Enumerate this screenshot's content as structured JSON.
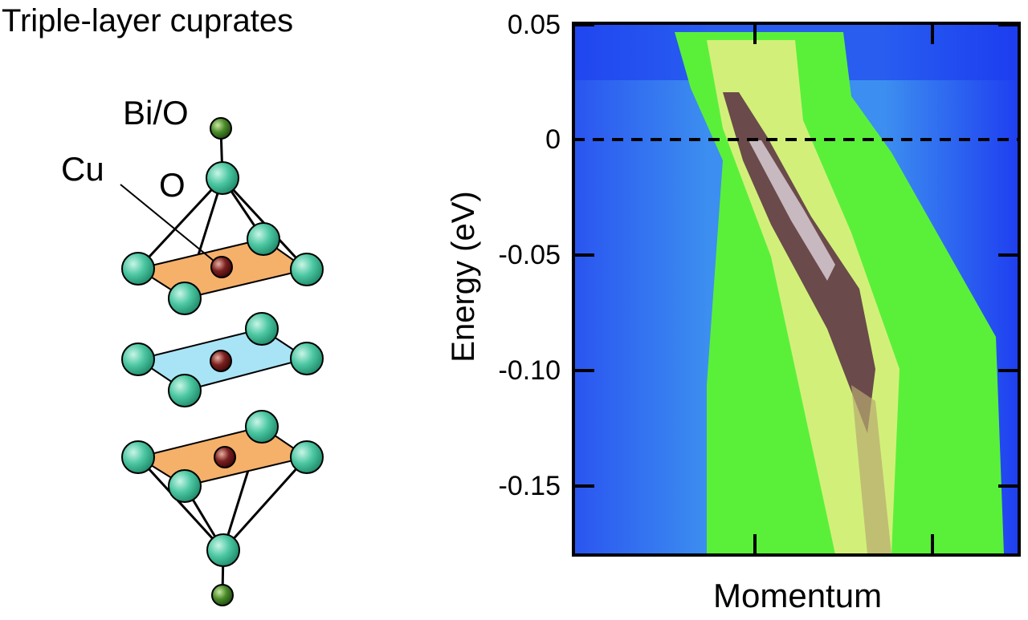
{
  "diagram": {
    "title": "Triple-layer cuprates",
    "labels": {
      "bio": "Bi/O",
      "cu": "Cu",
      "o": "O"
    },
    "colors": {
      "oxygen": "#3fbf9a",
      "copper": "#6b1d1d",
      "bio": "#4a7a2a",
      "outer_plane": "#f5b06a",
      "inner_plane": "#a8e4f5"
    }
  },
  "chart_data": {
    "type": "heatmap",
    "title": "",
    "xlabel": "Momentum",
    "ylabel": "Energy (eV)",
    "ylim": [
      -0.18,
      0.05
    ],
    "yticks": [
      0.05,
      0,
      -0.05,
      -0.1,
      -0.15
    ],
    "ytick_labels": [
      "0.05",
      "0",
      "-0.05",
      "-0.10",
      "-0.15"
    ],
    "xtick_labels": [],
    "fermi_level_line": {
      "energy": 0,
      "style": "dashed"
    },
    "colormap": [
      "#1a3cf0",
      "#3fa0f0",
      "#5af03a",
      "#f0f08a",
      "#6a4a4a",
      "#d8c8d0"
    ],
    "grid": false
  }
}
